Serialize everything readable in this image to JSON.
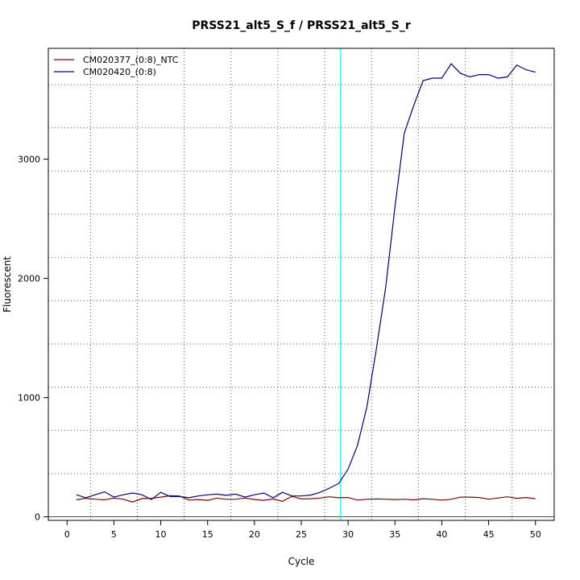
{
  "chart_data": {
    "type": "line",
    "title": "PRSS21_alt5_S_f / PRSS21_alt5_S_r",
    "xlabel": "Cycle",
    "ylabel": "Fluorescent",
    "xlim": [
      -2,
      52
    ],
    "ylim": [
      -30,
      3930
    ],
    "x_ticks": [
      0,
      5,
      10,
      15,
      20,
      25,
      30,
      35,
      40,
      45,
      50
    ],
    "y_ticks": [
      0,
      1000,
      2000,
      3000
    ],
    "grid": true,
    "legend_position": "top-left",
    "threshold": {
      "x": 29.2,
      "color": "#00ffff"
    },
    "baseline": {
      "y": 0,
      "color": "#ff0000"
    },
    "x": [
      1,
      2,
      3,
      4,
      5,
      6,
      7,
      8,
      9,
      10,
      11,
      12,
      13,
      14,
      15,
      16,
      17,
      18,
      19,
      20,
      21,
      22,
      23,
      24,
      25,
      26,
      27,
      28,
      29,
      30,
      31,
      32,
      33,
      34,
      35,
      36,
      37,
      38,
      39,
      40,
      41,
      42,
      43,
      44,
      45,
      46,
      47,
      48,
      49,
      50
    ],
    "series": [
      {
        "name": "CM020377_(0:8)_NTC",
        "color": "#8b0000",
        "values": [
          143,
          155,
          148,
          143,
          157,
          148,
          124,
          153,
          155,
          165,
          177,
          175,
          140,
          145,
          138,
          157,
          147,
          148,
          157,
          146,
          138,
          150,
          130,
          172,
          150,
          152,
          157,
          168,
          160,
          162,
          140,
          148,
          150,
          148,
          145,
          148,
          142,
          152,
          147,
          140,
          147,
          165,
          165,
          162,
          148,
          158,
          168,
          155,
          162,
          152
        ]
      },
      {
        "name": "CM020420_(0:8)",
        "color": "#00008b",
        "values": [
          185,
          160,
          185,
          210,
          165,
          185,
          200,
          185,
          145,
          205,
          170,
          170,
          160,
          175,
          185,
          190,
          180,
          190,
          165,
          185,
          200,
          160,
          205,
          175,
          175,
          182,
          205,
          240,
          280,
          400,
          600,
          920,
          1400,
          1920,
          2600,
          3220,
          3450,
          3660,
          3680,
          3680,
          3800,
          3720,
          3690,
          3710,
          3710,
          3680,
          3690,
          3790,
          3750,
          3730
        ]
      }
    ]
  }
}
